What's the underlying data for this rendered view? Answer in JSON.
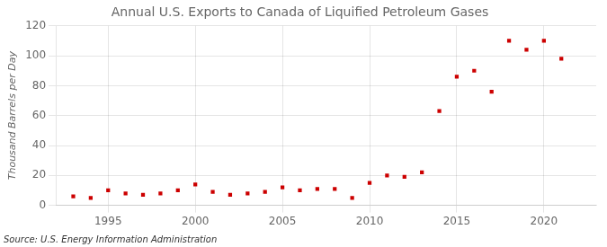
{
  "chart_data": {
    "type": "scatter",
    "title": "Annual U.S. Exports to Canada of Liquified Petroleum Gases",
    "ylabel": "Thousand Barrels per Day",
    "annotations": [
      "Source: U.S. Energy Information Administration"
    ],
    "x": [
      1993,
      1994,
      1995,
      1996,
      1997,
      1998,
      1999,
      2000,
      2001,
      2002,
      2003,
      2004,
      2005,
      2006,
      2007,
      2008,
      2009,
      2010,
      2011,
      2012,
      2013,
      2014,
      2015,
      2016,
      2017,
      2018,
      2019,
      2020,
      2021
    ],
    "values": [
      6,
      5,
      10,
      8,
      7,
      8,
      10,
      14,
      9,
      7,
      8,
      9,
      12,
      10,
      11,
      11,
      5,
      15,
      20,
      19,
      22,
      63,
      86,
      90,
      76,
      110,
      104,
      110,
      98
    ],
    "color": "#cc0000",
    "marker": "square",
    "xlim": [
      1992,
      2023
    ],
    "xticks": [
      1995,
      2000,
      2005,
      2010,
      2015,
      2020
    ],
    "ylim": [
      0,
      120
    ],
    "yticks": [
      0,
      20,
      40,
      60,
      80,
      100,
      120
    ],
    "grid": true
  }
}
